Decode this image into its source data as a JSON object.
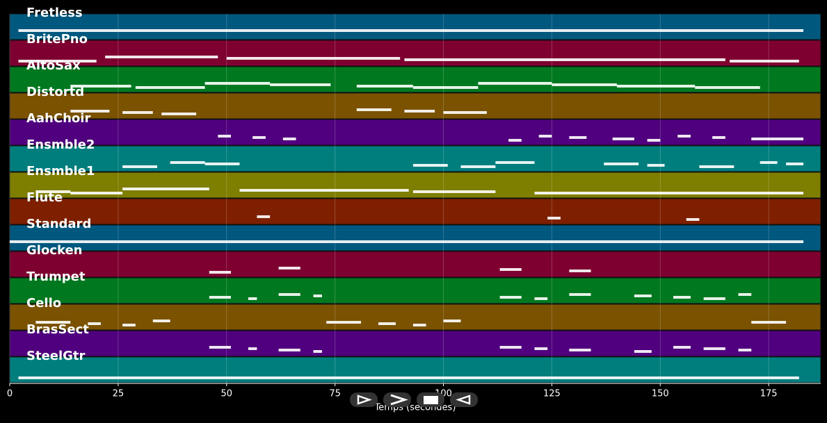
{
  "chart_data": {
    "type": "timeline",
    "xlabel": "Temps (secondes)",
    "xlim": [
      0,
      187
    ],
    "xticks": [
      0,
      25,
      50,
      75,
      100,
      125,
      150,
      175
    ],
    "grid": true,
    "tracks": [
      {
        "name": "Fretless",
        "color": "#00587e",
        "notes": [
          [
            2,
            183
          ]
        ]
      },
      {
        "name": "BritePno",
        "color": "#7e0030",
        "notes": [
          [
            2,
            20
          ],
          [
            22,
            48
          ],
          [
            50,
            90
          ],
          [
            91,
            165
          ],
          [
            166,
            182
          ]
        ]
      },
      {
        "name": "AltoSax",
        "color": "#007820",
        "notes": [
          [
            14,
            28
          ],
          [
            29,
            45
          ],
          [
            45,
            60
          ],
          [
            60,
            74
          ],
          [
            80,
            93
          ],
          [
            93,
            108
          ],
          [
            108,
            125
          ],
          [
            125,
            140
          ],
          [
            140,
            158
          ],
          [
            158,
            173
          ]
        ]
      },
      {
        "name": "Distortd",
        "color": "#7a5200",
        "notes": [
          [
            14,
            23
          ],
          [
            26,
            33
          ],
          [
            35,
            43
          ],
          [
            80,
            88
          ],
          [
            91,
            98
          ],
          [
            100,
            110
          ]
        ]
      },
      {
        "name": "AahChoir",
        "color": "#50007e",
        "notes": [
          [
            48,
            51
          ],
          [
            56,
            59
          ],
          [
            63,
            66
          ],
          [
            115,
            118
          ],
          [
            122,
            125
          ],
          [
            129,
            133
          ],
          [
            139,
            144
          ],
          [
            147,
            150
          ],
          [
            154,
            157
          ],
          [
            162,
            165
          ],
          [
            171,
            183
          ]
        ]
      },
      {
        "name": "Ensmble2",
        "color": "#007e7e",
        "notes": [
          [
            26,
            34
          ],
          [
            37,
            45
          ],
          [
            45,
            53
          ],
          [
            93,
            101
          ],
          [
            104,
            112
          ],
          [
            112,
            121
          ],
          [
            137,
            145
          ],
          [
            147,
            151
          ],
          [
            159,
            167
          ],
          [
            173,
            177
          ],
          [
            179,
            183
          ]
        ]
      },
      {
        "name": "Ensmble1",
        "color": "#7e7e00",
        "notes": [
          [
            6,
            14
          ],
          [
            14,
            26
          ],
          [
            26,
            46
          ],
          [
            53,
            92
          ],
          [
            93,
            112
          ],
          [
            121,
            183
          ]
        ]
      },
      {
        "name": "Flute",
        "color": "#7e2000",
        "notes": [
          [
            57,
            60
          ],
          [
            124,
            127
          ],
          [
            156,
            159
          ]
        ]
      },
      {
        "name": "Standard",
        "color": "#00587e",
        "notes": [
          [
            0,
            183
          ]
        ]
      },
      {
        "name": "Glocken",
        "color": "#7e0030",
        "notes": [
          [
            46,
            51
          ],
          [
            62,
            67
          ],
          [
            113,
            118
          ],
          [
            129,
            134
          ]
        ]
      },
      {
        "name": "Trumpet",
        "color": "#007820",
        "notes": [
          [
            46,
            51
          ],
          [
            55,
            57
          ],
          [
            62,
            67
          ],
          [
            70,
            72
          ],
          [
            113,
            118
          ],
          [
            121,
            124
          ],
          [
            129,
            134
          ],
          [
            144,
            148
          ],
          [
            153,
            157
          ],
          [
            160,
            165
          ],
          [
            168,
            171
          ]
        ]
      },
      {
        "name": "Cello",
        "color": "#7a5200",
        "notes": [
          [
            6,
            14
          ],
          [
            18,
            21
          ],
          [
            26,
            29
          ],
          [
            33,
            37
          ],
          [
            73,
            81
          ],
          [
            85,
            89
          ],
          [
            93,
            96
          ],
          [
            100,
            104
          ],
          [
            171,
            179
          ]
        ]
      },
      {
        "name": "BrasSect",
        "color": "#50007e",
        "notes": [
          [
            46,
            51
          ],
          [
            55,
            57
          ],
          [
            62,
            67
          ],
          [
            70,
            72
          ],
          [
            113,
            118
          ],
          [
            121,
            124
          ],
          [
            129,
            134
          ],
          [
            144,
            148
          ],
          [
            153,
            157
          ],
          [
            160,
            165
          ],
          [
            168,
            171
          ]
        ]
      },
      {
        "name": "SteelGtr",
        "color": "#007e7e",
        "notes": [
          [
            2,
            182
          ]
        ]
      }
    ]
  }
}
